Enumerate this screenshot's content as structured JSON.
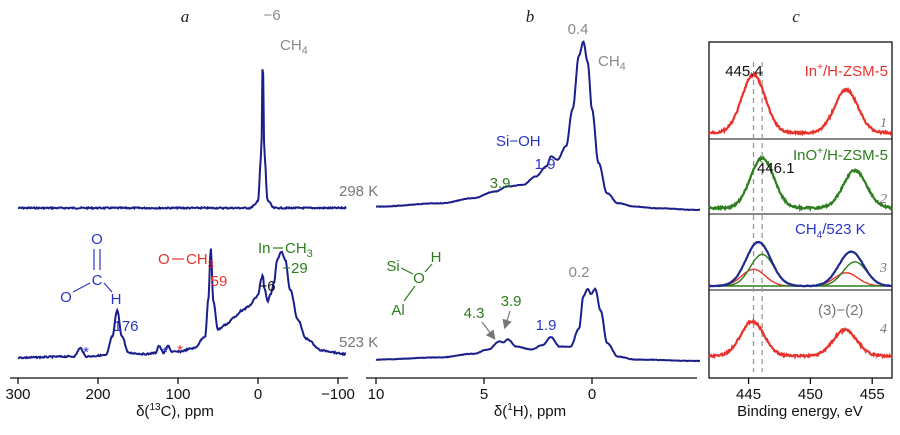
{
  "colors": {
    "blue": "#1f2a8f",
    "spectrum": "#1a1f8c",
    "red": "#e8332d",
    "green": "#2e7d1e",
    "gray": "#8a8a8a",
    "black": "#111111",
    "text_blue": "#2a35c8",
    "text_green": "#2e7d1e"
  },
  "chart_data": [
    {
      "id": "a",
      "type": "line",
      "panel_label": "a",
      "xlabel_prefix": "δ(",
      "xlabel_sup": "13",
      "xlabel_suffix": "C), ppm",
      "xlim": [
        300,
        -110
      ],
      "xticks": [
        300,
        200,
        100,
        0,
        -100
      ],
      "xtick_labels": [
        "300",
        "200",
        "100",
        "0",
        "−100"
      ],
      "series": [
        {
          "temperature": "298 K",
          "x": [
            300,
            200,
            100,
            10,
            4,
            0,
            -4,
            -6,
            -8,
            -12,
            -20,
            -60,
            -110
          ],
          "y": [
            0,
            0,
            0,
            0,
            0.02,
            0.05,
            0.35,
            1.0,
            0.35,
            0.05,
            0,
            0,
            0
          ]
        },
        {
          "temperature": "523 K",
          "x": [
            300,
            230,
            222,
            215,
            190,
            182,
            176,
            170,
            162,
            140,
            128,
            124,
            118,
            112,
            108,
            100,
            80,
            66,
            62,
            59,
            56,
            50,
            40,
            30,
            20,
            10,
            4,
            0,
            -4,
            -6,
            -8,
            -12,
            -16,
            -20,
            -24,
            -29,
            -34,
            -40,
            -50,
            -60,
            -80,
            -110
          ],
          "y": [
            0.02,
            0.03,
            0.1,
            0.03,
            0.04,
            0.2,
            0.42,
            0.2,
            0.06,
            0.05,
            0.06,
            0.12,
            0.06,
            0.12,
            0.07,
            0.07,
            0.1,
            0.2,
            0.52,
            0.95,
            0.5,
            0.26,
            0.3,
            0.36,
            0.42,
            0.46,
            0.52,
            0.55,
            0.68,
            0.72,
            0.6,
            0.5,
            0.56,
            0.66,
            0.85,
            0.92,
            0.85,
            0.6,
            0.34,
            0.18,
            0.08,
            0.05
          ]
        }
      ],
      "annotations": [
        {
          "text": "−6",
          "x": -6,
          "series": 0,
          "color": "gray"
        },
        {
          "text": "CH",
          "sub": "4",
          "color": "gray"
        },
        {
          "text": "176",
          "color": "blue"
        },
        {
          "text": "59",
          "color": "red"
        },
        {
          "text": "−6",
          "color": "black"
        },
        {
          "text": "−29",
          "color": "green"
        },
        {
          "text": "O",
          "color": "blue"
        },
        {
          "text": "O",
          "color": "blue"
        },
        {
          "text": "C",
          "color": "blue"
        },
        {
          "text": "H",
          "color": "blue"
        },
        {
          "text": "O",
          "color": "red"
        },
        {
          "text": "CH",
          "sub": "3",
          "color": "red"
        },
        {
          "text": "In",
          "color": "green"
        },
        {
          "text": "CH",
          "sub": "3",
          "color": "green"
        },
        {
          "text": "*",
          "color": "blue"
        },
        {
          "text": "*",
          "color": "blue"
        },
        {
          "text": "*",
          "color": "red"
        }
      ]
    },
    {
      "id": "b",
      "type": "line",
      "panel_label": "b",
      "xlabel_prefix": "δ(",
      "xlabel_sup": "1",
      "xlabel_suffix": "H), ppm",
      "xlim": [
        10,
        -5
      ],
      "xticks": [
        10,
        5,
        0
      ],
      "xtick_labels": [
        "10",
        "5",
        "0"
      ],
      "series": [
        {
          "temperature": "298 K",
          "x": [
            10,
            7,
            5.5,
            4.5,
            3.9,
            3.2,
            2.6,
            2.1,
            1.9,
            1.6,
            1.2,
            0.9,
            0.6,
            0.4,
            0.2,
            0,
            -0.3,
            -0.7,
            -1.2,
            -2,
            -3,
            -5
          ],
          "y": [
            0.02,
            0.04,
            0.07,
            0.11,
            0.14,
            0.15,
            0.2,
            0.26,
            0.32,
            0.3,
            0.38,
            0.6,
            0.92,
            1.0,
            0.88,
            0.6,
            0.28,
            0.1,
            0.04,
            0.02,
            0.01,
            0
          ]
        },
        {
          "temperature": "523 K",
          "x": [
            10,
            7,
            5.5,
            4.8,
            4.3,
            4.1,
            3.9,
            3.5,
            2.8,
            2.3,
            1.9,
            1.5,
            1.0,
            0.6,
            0.4,
            0.2,
            0.05,
            -0.15,
            -0.4,
            -0.7,
            -1.2,
            -2,
            -5
          ],
          "y": [
            0.02,
            0.05,
            0.1,
            0.16,
            0.27,
            0.26,
            0.3,
            0.2,
            0.16,
            0.22,
            0.33,
            0.2,
            0.2,
            0.45,
            0.9,
            1.0,
            0.93,
            1.0,
            0.7,
            0.25,
            0.06,
            0.02,
            0
          ]
        }
      ],
      "annotations": [
        {
          "text": "0.4",
          "color": "gray"
        },
        {
          "text": "CH",
          "sub": "4",
          "color": "gray"
        },
        {
          "text": "Si−OH",
          "color": "blue"
        },
        {
          "text": "1.9",
          "color": "blue"
        },
        {
          "text": "3.9",
          "color": "green"
        },
        {
          "text": "0.2",
          "color": "gray"
        },
        {
          "text": "4.3",
          "color": "green"
        },
        {
          "text": "3.9",
          "color": "green"
        },
        {
          "text": "1.9",
          "color": "blue"
        },
        {
          "text": "Si",
          "color": "green"
        },
        {
          "text": "O",
          "color": "green"
        },
        {
          "text": "H",
          "color": "green"
        },
        {
          "text": "Al",
          "color": "green"
        }
      ]
    },
    {
      "id": "c",
      "type": "line",
      "panel_label": "c",
      "xlabel": "Binding energy, eV",
      "xlim": [
        441.8,
        456.6
      ],
      "xticks": [
        445,
        450,
        455
      ],
      "xtick_labels": [
        "445",
        "450",
        "455"
      ],
      "reference_lines": [
        445.4,
        446.1
      ],
      "curves": [
        {
          "number": "1",
          "label": "In⁺/H-ZSM-5",
          "label_base": "In",
          "label_sup": "+",
          "label_rest": "/H-ZSM-5",
          "peak_label": "445.4",
          "color": "red",
          "peaks": [
            {
              "center": 445.4,
              "height": 1.0,
              "width": 0.95
            },
            {
              "center": 452.9,
              "height": 0.74,
              "width": 0.95
            }
          ],
          "baseline": 0.02
        },
        {
          "number": "2",
          "label": "InO⁺/H-ZSM-5",
          "label_base": "InO",
          "label_sup": "+",
          "label_rest": "/H-ZSM-5",
          "peak_label": "446.1",
          "color": "green",
          "peaks": [
            {
              "center": 446.1,
              "height": 1.0,
              "width": 0.95
            },
            {
              "center": 453.6,
              "height": 0.75,
              "width": 0.95
            }
          ],
          "baseline": 0.02
        },
        {
          "number": "3",
          "label": "CH₄/523 K",
          "label_base": "CH",
          "label_sub": "4",
          "label_rest": "/523 K",
          "color": "blue",
          "peaks": [
            {
              "center": 445.8,
              "height": 1.0,
              "width": 1.0
            },
            {
              "center": 453.3,
              "height": 0.78,
              "width": 1.0
            }
          ],
          "components": [
            {
              "color": "red",
              "peaks": [
                {
                  "center": 445.4,
                  "height": 0.38,
                  "width": 0.95
                },
                {
                  "center": 452.9,
                  "height": 0.3,
                  "width": 0.95
                }
              ]
            },
            {
              "color": "green",
              "peaks": [
                {
                  "center": 446.1,
                  "height": 0.72,
                  "width": 0.95
                },
                {
                  "center": 453.6,
                  "height": 0.55,
                  "width": 0.95
                }
              ]
            }
          ],
          "baseline": 0.0
        },
        {
          "number": "4",
          "label": "(3)−(2)",
          "color": "red",
          "peaks": [
            {
              "center": 445.3,
              "height": 0.82,
              "width": 0.95
            },
            {
              "center": 452.8,
              "height": 0.62,
              "width": 0.95
            }
          ],
          "baseline": 0.05
        }
      ]
    }
  ]
}
